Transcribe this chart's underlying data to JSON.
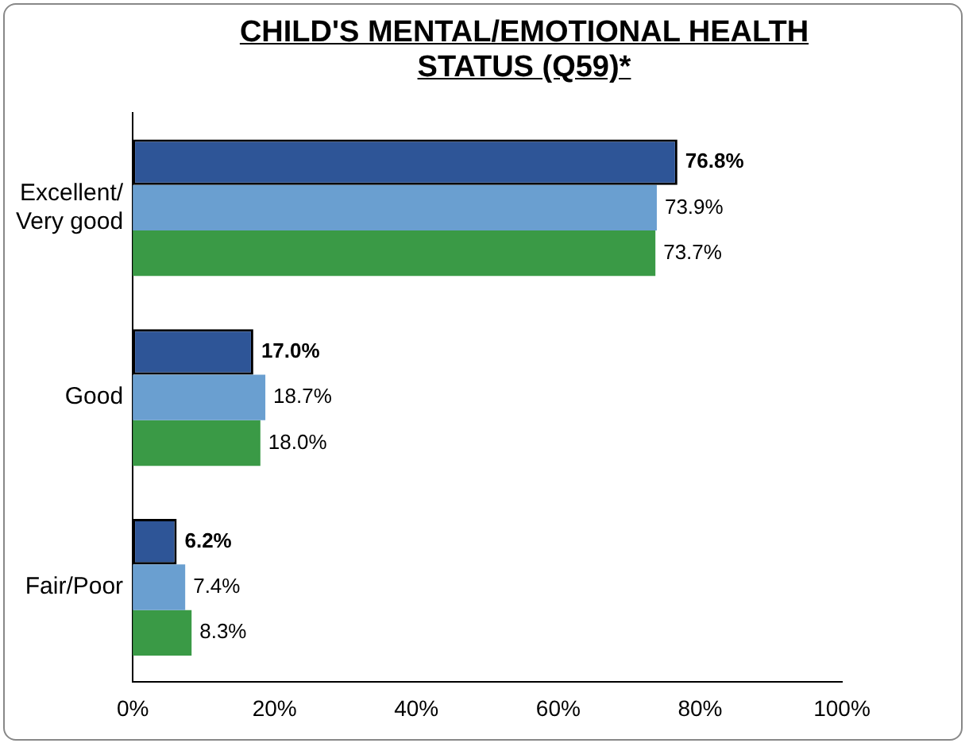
{
  "chart_data": {
    "type": "bar",
    "orientation": "horizontal",
    "title": "CHILD'S MENTAL/EMOTIONAL HEALTH STATUS (Q59)*",
    "categories": [
      "Excellent/ Very good",
      "Good",
      "Fair/Poor"
    ],
    "series": [
      {
        "color": "#2e5597",
        "values": [
          76.8,
          17.0,
          6.2
        ],
        "value_labels": [
          "76.8%",
          "17.0%",
          "6.2%"
        ]
      },
      {
        "color": "#6a9fd0",
        "values": [
          73.9,
          18.7,
          7.4
        ],
        "value_labels": [
          "73.9%",
          "18.7%",
          "7.4%"
        ]
      },
      {
        "color": "#3a9a46",
        "values": [
          73.7,
          18.0,
          8.3
        ],
        "value_labels": [
          "73.7%",
          "18.0%",
          "8.3%"
        ]
      }
    ],
    "xlim": [
      0,
      100
    ],
    "xticks": [
      {
        "value": 0,
        "label": "0%"
      },
      {
        "value": 20,
        "label": "20%"
      },
      {
        "value": 40,
        "label": "40%"
      },
      {
        "value": 60,
        "label": "60%"
      },
      {
        "value": 80,
        "label": "80%"
      },
      {
        "value": 100,
        "label": "100%"
      }
    ],
    "grid": false,
    "legend": false
  }
}
